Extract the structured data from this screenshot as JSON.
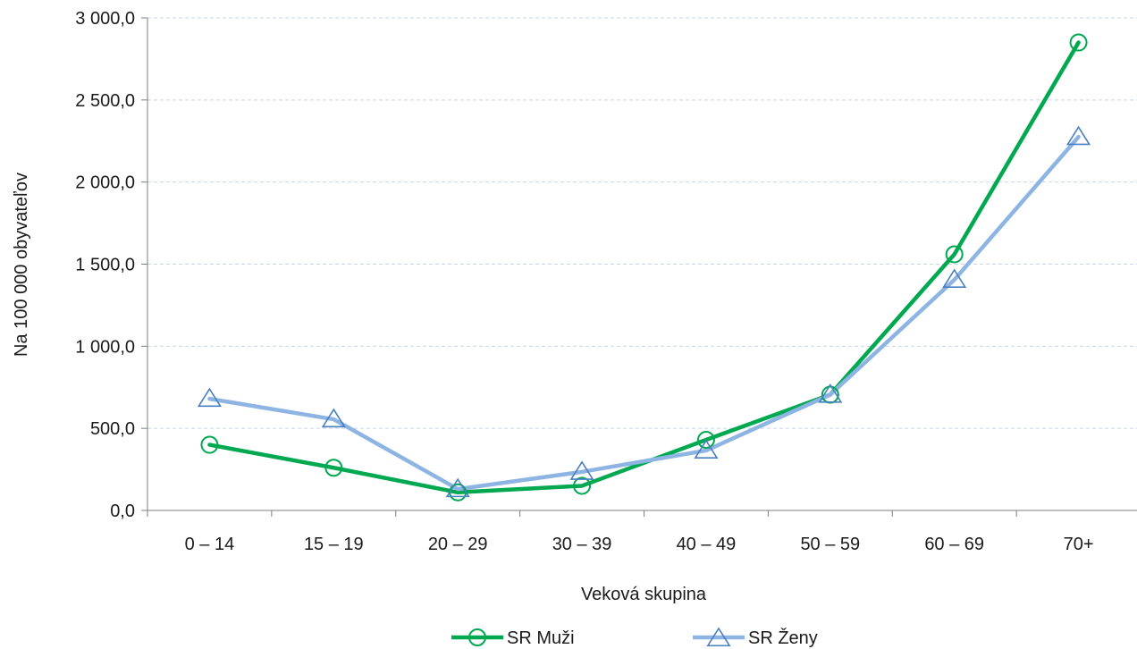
{
  "chart_data": {
    "type": "line",
    "xlabel": "Veková skupina",
    "ylabel": "Na 100 000 obyvateľov",
    "categories": [
      "0 – 14",
      "15 – 19",
      "20 – 29",
      "30 – 39",
      "40 – 49",
      "50 – 59",
      "60 – 69",
      "70+"
    ],
    "ylim": [
      0,
      3000
    ],
    "yticks": [
      0,
      500,
      1000,
      1500,
      2000,
      2500,
      3000
    ],
    "ytick_labels": [
      "0,0",
      "500,0",
      "1 000,0",
      "1 500,0",
      "2 000,0",
      "2 500,0",
      "3 000,0"
    ],
    "grid": true,
    "legend_position": "bottom",
    "series": [
      {
        "name": "SR Muži",
        "color": "#00a850",
        "marker": "circle",
        "values": [
          400,
          260,
          110,
          150,
          430,
          705,
          1560,
          2850
        ]
      },
      {
        "name": "SR Ženy",
        "color": "#8eb4e3",
        "marker_color": "#4a7fc1",
        "marker": "triangle",
        "values": [
          680,
          555,
          130,
          235,
          365,
          705,
          1405,
          2275
        ]
      }
    ]
  }
}
